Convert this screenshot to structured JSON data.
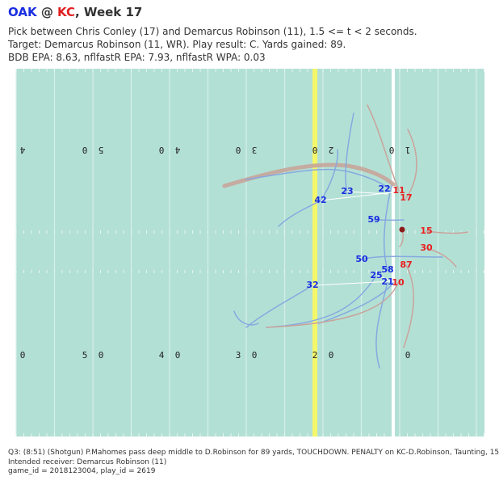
{
  "header": {
    "title": [
      "OAK",
      " @ ",
      "KC",
      ", Week 17"
    ],
    "subtitle": [
      "Pick between Chris Conley (17) and Demarcus Robinson (11), 1.5 <= t < 2 seconds.",
      "Target: Demarcus Robinson (11, WR). Play result: C. Yards gained: 89.",
      "BDB EPA: 8.63, nflfastR EPA: 7.93, nflfastR WPA: 0.03"
    ]
  },
  "field": {
    "top_numbers": [
      "4",
      "0",
      "5",
      "0",
      "4",
      "0",
      "3",
      "0",
      "2",
      "0",
      "1"
    ],
    "bottom_numbers": [
      "0",
      "5",
      "0",
      "4",
      "0",
      "3",
      "0",
      "2",
      "0",
      "0"
    ]
  },
  "players": {
    "defense": [
      "22",
      "23",
      "42",
      "59",
      "50",
      "58",
      "25",
      "21",
      "32"
    ],
    "offense": [
      "11",
      "17",
      "15",
      "30",
      "87",
      "10"
    ]
  },
  "footer": [
    "Q3: (8:51) (Shotgun) P.Mahomes pass deep middle to D.Robinson for 89 yards, TOUCHDOWN. PENALTY on KC-D.Robinson, Taunting, 15",
    "Intended receiver: Demarcus Robinson (11)",
    "game_id = 2018123004, play_id = 2619"
  ]
}
